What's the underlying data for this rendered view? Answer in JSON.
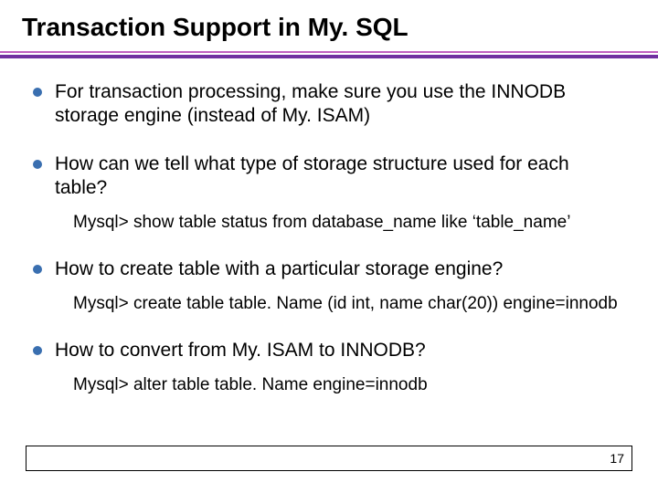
{
  "title": "Transaction Support in My. SQL",
  "divider": {
    "thin_color": "#c060c0",
    "thick_color": "#7030a0"
  },
  "bullet": {
    "dot_color": "#3a6fb0",
    "text_color": "#000000",
    "font_size_pt": 16
  },
  "items": [
    {
      "text": "For transaction processing, make sure you use the INNODB storage engine (instead of My. ISAM)",
      "sub": null
    },
    {
      "text": "How can we tell what type of storage structure used for each table?",
      "sub": "Mysql> show table status from database_name like ‘table_name’"
    },
    {
      "text": "How to create table with a particular storage engine?",
      "sub": "Mysql> create table table. Name (id int, name char(20)) engine=innodb"
    },
    {
      "text": "How to convert from My. ISAM to INNODB?",
      "sub": "Mysql> alter table table. Name engine=innodb"
    }
  ],
  "page_number": "17",
  "background_color": "#ffffff"
}
